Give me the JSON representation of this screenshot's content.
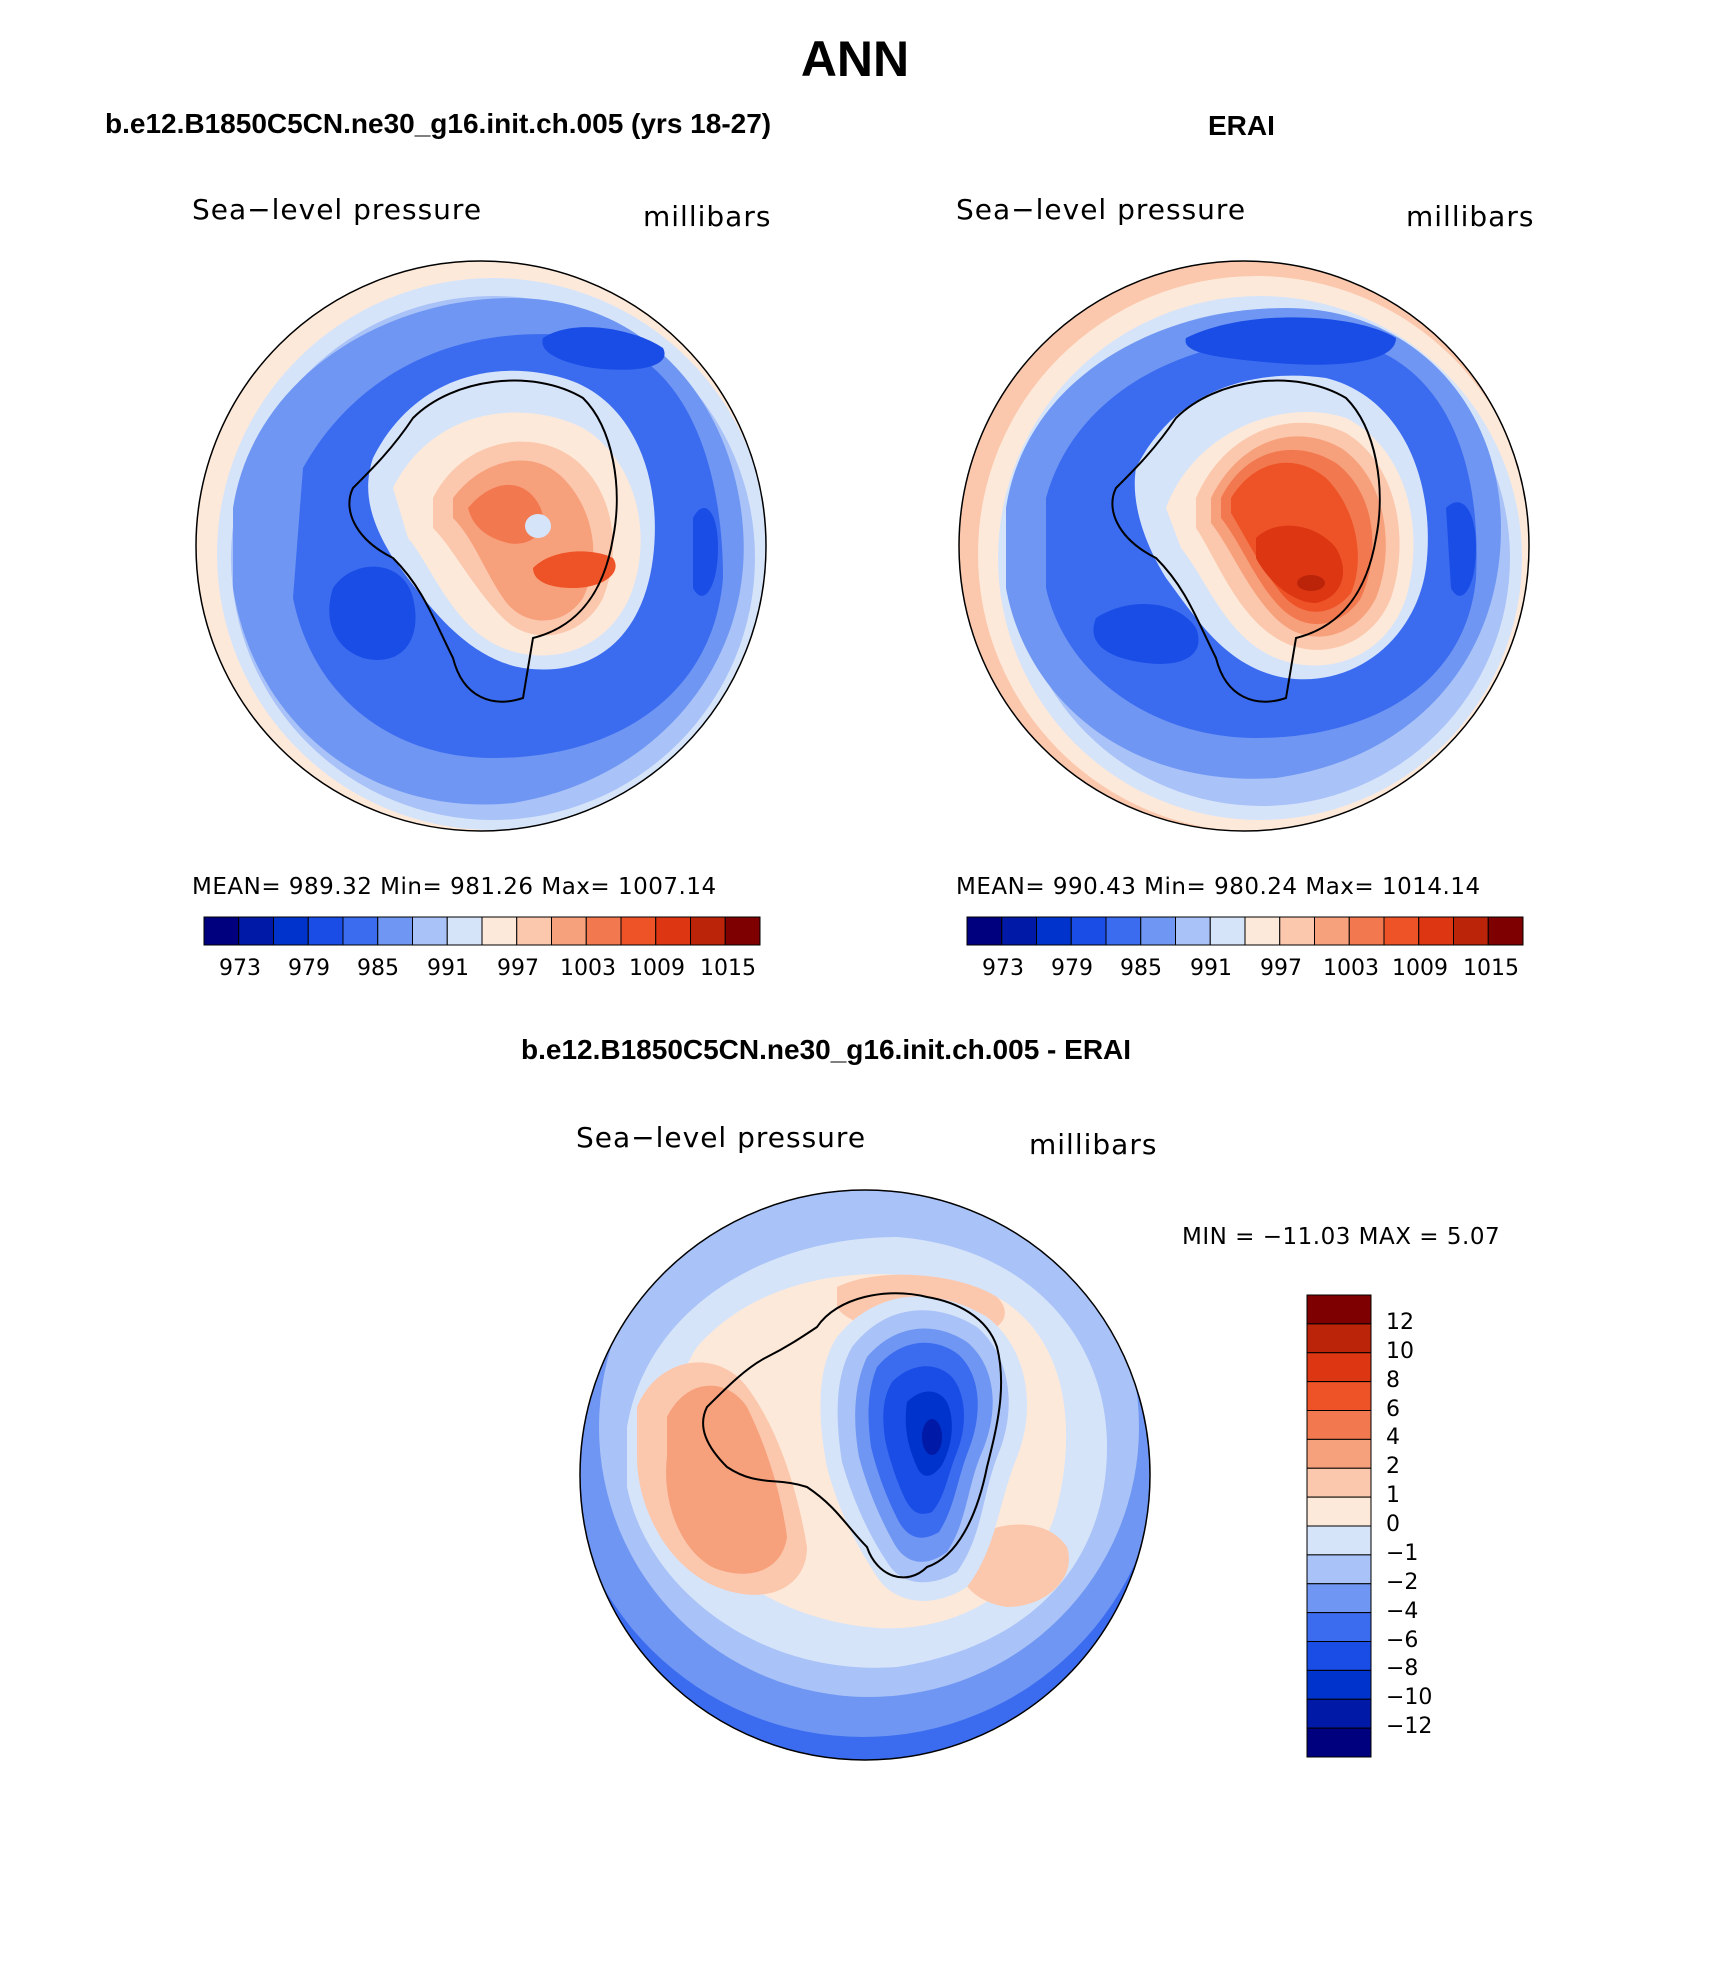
{
  "main_title": "ANN",
  "panels": [
    {
      "id": "model",
      "title": "b.e12.B1850C5CN.ne30_g16.init.ch.005 (yrs 18-27)",
      "left_label": "Sea−level pressure",
      "right_label": "millibars",
      "stats": "MEAN=  989.32   Min=  981.26   Max=  1007.14",
      "colors": [
        "#00007f",
        "#0019a6",
        "#0033cc",
        "#1a4de6",
        "#3b6cf0",
        "#6f96f2",
        "#a9c2f7",
        "#d6e4fa",
        "#fde9d9",
        "#fbc8ad",
        "#f7a07c",
        "#f2784f",
        "#ee5327",
        "#dd3612",
        "#bb2409",
        "#7f0000"
      ],
      "tick_labels": [
        "973",
        "979",
        "985",
        "991",
        "997",
        "1003",
        "1009",
        "1015"
      ]
    },
    {
      "id": "obs",
      "title": "ERAI",
      "left_label": "Sea−level pressure",
      "right_label": "millibars",
      "stats": "MEAN=  990.43   Min=  980.24   Max=  1014.14",
      "colors": [
        "#00007f",
        "#0019a6",
        "#0033cc",
        "#1a4de6",
        "#3b6cf0",
        "#6f96f2",
        "#a9c2f7",
        "#d6e4fa",
        "#fde9d9",
        "#fbc8ad",
        "#f7a07c",
        "#f2784f",
        "#ee5327",
        "#dd3612",
        "#bb2409",
        "#7f0000"
      ],
      "tick_labels": [
        "973",
        "979",
        "985",
        "991",
        "997",
        "1003",
        "1009",
        "1015"
      ]
    },
    {
      "id": "diff",
      "title": "b.e12.B1850C5CN.ne30_g16.init.ch.005 - ERAI",
      "left_label": "Sea−level pressure",
      "right_label": "millibars",
      "stats": "MIN = −11.03 MAX =    5.07",
      "colors": [
        "#7f0000",
        "#bb2409",
        "#dd3612",
        "#ee5327",
        "#f2784f",
        "#f7a07c",
        "#fbc8ad",
        "#fde9d9",
        "#d6e4fa",
        "#a9c2f7",
        "#6f96f2",
        "#3b6cf0",
        "#1a4de6",
        "#0033cc",
        "#0019a6",
        "#00007f"
      ],
      "tick_labels": [
        "12",
        "10",
        "8",
        "6",
        "4",
        "2",
        "1",
        "0",
        "−1",
        "−2",
        "−4",
        "−6",
        "−8",
        "−10",
        "−12"
      ]
    }
  ]
}
